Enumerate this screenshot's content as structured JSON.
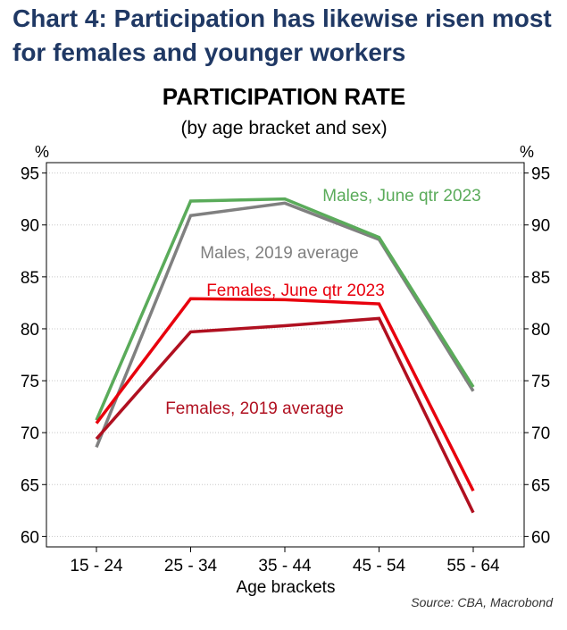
{
  "heading": "Chart 4: Participation has likewise risen most for females and younger workers",
  "source": "Source: CBA, Macrobond",
  "colors": {
    "heading": "#1f3864",
    "males_june_2023": "#5aab5a",
    "males_2019": "#808080",
    "females_june_2023": "#e8000d",
    "females_2019": "#b01020"
  },
  "chart_data": {
    "type": "line",
    "title": "PARTICIPATION RATE",
    "subtitle": "(by age bracket and sex)",
    "xlabel": "Age brackets",
    "y_unit_left": "%",
    "y_unit_right": "%",
    "categories": [
      "15 - 24",
      "25 - 34",
      "35 - 44",
      "45 - 54",
      "55 - 64"
    ],
    "ylim": [
      59,
      96
    ],
    "yticks": [
      60,
      65,
      70,
      75,
      80,
      85,
      90,
      95
    ],
    "ytick_labels": [
      "60",
      "65",
      "70",
      "75",
      "80",
      "85",
      "90",
      "95"
    ],
    "grid": true,
    "series": [
      {
        "name": "Males, June qtr 2023",
        "color": "#5aab5a",
        "values": [
          71.2,
          92.3,
          92.5,
          88.8,
          74.4
        ]
      },
      {
        "name": "Males, 2019 average",
        "color": "#808080",
        "values": [
          68.6,
          90.9,
          92.1,
          88.6,
          74.0
        ]
      },
      {
        "name": "Females, June qtr 2023",
        "color": "#e8000d",
        "values": [
          70.9,
          82.9,
          82.8,
          82.4,
          64.4
        ]
      },
      {
        "name": "Females, 2019 average",
        "color": "#b01020",
        "values": [
          69.4,
          79.7,
          80.3,
          81.0,
          62.3
        ]
      }
    ]
  }
}
